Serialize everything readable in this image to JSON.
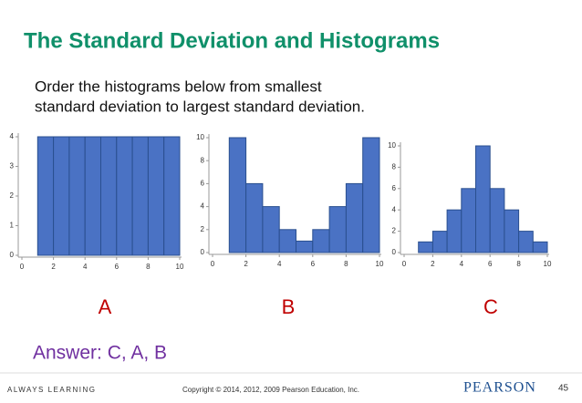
{
  "title": "The Standard Deviation and Histograms",
  "prompt": [
    "Order the histograms below from smallest",
    "standard deviation to largest standard deviation."
  ],
  "answer": "Answer:  C, A, B",
  "footer": {
    "left": "ALWAYS LEARNING",
    "copyright": "Copyright © 2014, 2012, 2009 Pearson Education, Inc.",
    "logo": "PEARSON",
    "page": "45"
  },
  "chart_data": [
    {
      "type": "histogram",
      "label": "A",
      "bins": [
        1,
        2,
        3,
        4,
        5,
        6,
        7,
        8,
        9,
        10
      ],
      "values": [
        4,
        4,
        4,
        4,
        4,
        4,
        4,
        4,
        4
      ],
      "color": "#4a72c4",
      "xlim": [
        0,
        10
      ],
      "xticks": [
        0,
        2,
        4,
        6,
        8,
        10
      ],
      "ylim": [
        0,
        4
      ],
      "yticks": [
        0,
        1,
        2,
        3,
        4
      ]
    },
    {
      "type": "histogram",
      "label": "B",
      "bins": [
        1,
        2,
        3,
        4,
        5,
        6,
        7,
        8,
        9,
        10
      ],
      "values": [
        10,
        6,
        4,
        2,
        1,
        2,
        4,
        6,
        10
      ],
      "color": "#4a72c4",
      "xlim": [
        0,
        10
      ],
      "xticks": [
        0,
        2,
        4,
        6,
        8,
        10
      ],
      "ylim": [
        0,
        10
      ],
      "yticks": [
        0,
        2,
        4,
        6,
        8,
        10
      ]
    },
    {
      "type": "histogram",
      "label": "C",
      "bins": [
        1,
        2,
        3,
        4,
        5,
        6,
        7,
        8,
        9,
        10
      ],
      "values": [
        1,
        2,
        4,
        6,
        10,
        6,
        4,
        2,
        1
      ],
      "color": "#4a72c4",
      "xlim": [
        0,
        10
      ],
      "xticks": [
        0,
        2,
        4,
        6,
        8,
        10
      ],
      "ylim": [
        0,
        10
      ],
      "yticks": [
        0,
        2,
        4,
        6,
        8,
        10
      ]
    }
  ]
}
